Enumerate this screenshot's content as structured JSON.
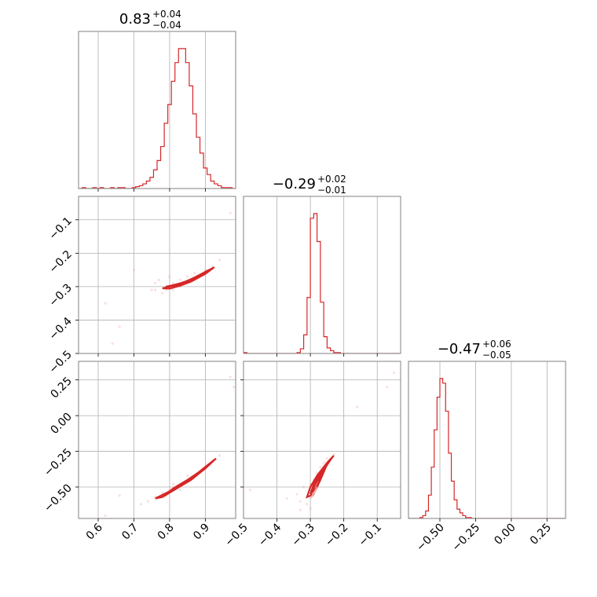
{
  "chart_data": {
    "type": "corner",
    "color": "#d62728",
    "panels": [
      {
        "id": "p00",
        "kind": "hist",
        "row": 0,
        "col": 0,
        "title": {
          "main": "0.83",
          "plus": "+0.04",
          "minus": "−0.04"
        },
        "xlim": [
          0.545,
          0.985
        ],
        "bin_edges": [
          0.545,
          0.555,
          0.565,
          0.575,
          0.585,
          0.595,
          0.605,
          0.615,
          0.625,
          0.635,
          0.645,
          0.655,
          0.665,
          0.675,
          0.685,
          0.695,
          0.705,
          0.715,
          0.725,
          0.735,
          0.745,
          0.755,
          0.765,
          0.775,
          0.785,
          0.795,
          0.805,
          0.815,
          0.825,
          0.835,
          0.845,
          0.855,
          0.865,
          0.875,
          0.885,
          0.895,
          0.905,
          0.915,
          0.925,
          0.935,
          0.945,
          0.955,
          0.965,
          0.975,
          0.985
        ],
        "counts": [
          0,
          1,
          0,
          0,
          1,
          0,
          1,
          0,
          0,
          1,
          0,
          1,
          1,
          0,
          0,
          1,
          2,
          3,
          5,
          8,
          12,
          20,
          30,
          45,
          70,
          90,
          115,
          135,
          150,
          150,
          135,
          110,
          80,
          55,
          38,
          22,
          15,
          8,
          5,
          3,
          1,
          1,
          1,
          0
        ],
        "ylim": [
          0,
          160
        ],
        "xgrid": [
          0.6,
          0.7,
          0.8,
          0.9
        ]
      },
      {
        "id": "p10",
        "kind": "scatter",
        "row": 1,
        "col": 0,
        "xlim": [
          0.545,
          0.985
        ],
        "ylim": [
          -0.5,
          -0.03
        ],
        "xgrid": [
          0.6,
          0.7,
          0.8,
          0.9
        ],
        "ygrid": [
          -0.1,
          -0.2,
          -0.3,
          -0.4
        ],
        "yticklabels": [
          "−0.1",
          "−0.2",
          "−0.3",
          "−0.4",
          "−0.5"
        ],
        "ytickvals": [
          -0.1,
          -0.2,
          -0.3,
          -0.4,
          -0.5
        ],
        "contours": [
          [
            [
              0.78,
              -0.305
            ],
            [
              0.8,
              -0.3
            ],
            [
              0.83,
              -0.292
            ],
            [
              0.86,
              -0.278
            ],
            [
              0.89,
              -0.262
            ],
            [
              0.925,
              -0.242
            ],
            [
              0.9,
              -0.262
            ],
            [
              0.86,
              -0.285
            ],
            [
              0.83,
              -0.297
            ],
            [
              0.8,
              -0.306
            ],
            [
              0.78,
              -0.305
            ]
          ],
          [
            [
              0.79,
              -0.3
            ],
            [
              0.81,
              -0.296
            ],
            [
              0.84,
              -0.287
            ],
            [
              0.87,
              -0.273
            ],
            [
              0.91,
              -0.25
            ],
            [
              0.88,
              -0.268
            ],
            [
              0.85,
              -0.284
            ],
            [
              0.82,
              -0.296
            ],
            [
              0.79,
              -0.3
            ]
          ],
          [
            [
              0.8,
              -0.298
            ],
            [
              0.83,
              -0.291
            ],
            [
              0.86,
              -0.28
            ],
            [
              0.89,
              -0.264
            ],
            [
              0.86,
              -0.279
            ],
            [
              0.83,
              -0.29
            ],
            [
              0.8,
              -0.298
            ]
          ]
        ],
        "samples": [
          [
            0.62,
            -0.35
          ],
          [
            0.66,
            -0.42
          ],
          [
            0.7,
            -0.25
          ],
          [
            0.75,
            -0.31
          ],
          [
            0.76,
            -0.29
          ],
          [
            0.77,
            -0.28
          ],
          [
            0.78,
            -0.32
          ],
          [
            0.79,
            -0.3
          ],
          [
            0.8,
            -0.27
          ],
          [
            0.81,
            -0.31
          ],
          [
            0.82,
            -0.3
          ],
          [
            0.83,
            -0.28
          ],
          [
            0.84,
            -0.29
          ],
          [
            0.85,
            -0.27
          ],
          [
            0.86,
            -0.28
          ],
          [
            0.87,
            -0.26
          ],
          [
            0.88,
            -0.27
          ],
          [
            0.9,
            -0.25
          ],
          [
            0.92,
            -0.24
          ],
          [
            0.94,
            -0.22
          ],
          [
            0.97,
            -0.08
          ],
          [
            0.79,
            -0.31
          ],
          [
            0.81,
            -0.29
          ],
          [
            0.83,
            -0.3
          ],
          [
            0.76,
            -0.31
          ],
          [
            0.64,
            -0.47
          ]
        ]
      },
      {
        "id": "p11",
        "kind": "hist",
        "row": 1,
        "col": 1,
        "title": {
          "main": "−0.29",
          "plus": "+0.02",
          "minus": "−0.01"
        },
        "xlim": [
          -0.5,
          -0.03
        ],
        "bin_edges": [
          -0.5,
          -0.49,
          -0.48,
          -0.47,
          -0.46,
          -0.45,
          -0.44,
          -0.43,
          -0.42,
          -0.41,
          -0.4,
          -0.39,
          -0.38,
          -0.37,
          -0.36,
          -0.35,
          -0.34,
          -0.33,
          -0.32,
          -0.31,
          -0.3,
          -0.29,
          -0.28,
          -0.27,
          -0.26,
          -0.25,
          -0.24,
          -0.23,
          -0.22,
          -0.21,
          -0.2,
          -0.19,
          -0.18,
          -0.17,
          -0.16,
          -0.15,
          -0.14,
          -0.13,
          -0.12,
          -0.11,
          -0.1,
          -0.09,
          -0.08,
          -0.07,
          -0.06,
          -0.05,
          -0.04,
          -0.03
        ],
        "counts": [
          1,
          0,
          0,
          0,
          0,
          0,
          0,
          0,
          0,
          0,
          0,
          0,
          0,
          0,
          0,
          0,
          1,
          5,
          20,
          60,
          145,
          150,
          120,
          55,
          18,
          6,
          3,
          1,
          1,
          0,
          0,
          0,
          0,
          0,
          0,
          0,
          0,
          0,
          0,
          0,
          0,
          0,
          0,
          0,
          0,
          0,
          0
        ],
        "ylim": [
          0,
          160
        ],
        "xgrid": [
          -0.4,
          -0.3,
          -0.2,
          -0.1
        ]
      },
      {
        "id": "p20",
        "kind": "scatter",
        "row": 2,
        "col": 0,
        "xlim": [
          0.545,
          0.985
        ],
        "ylim": [
          -0.72,
          0.38
        ],
        "xgrid": [
          0.6,
          0.7,
          0.8,
          0.9
        ],
        "ygrid": [
          0.25,
          0.0,
          -0.25,
          -0.5
        ],
        "yticklabels": [
          "0.25",
          "0.00",
          "−0.25",
          "−0.50"
        ],
        "ytickvals": [
          0.25,
          0.0,
          -0.25,
          -0.5
        ],
        "xticklabels": [
          "0.6",
          "0.7",
          "0.8",
          "0.9"
        ],
        "xtickvals": [
          0.6,
          0.7,
          0.8,
          0.9
        ],
        "contours": [
          [
            [
              0.76,
              -0.58
            ],
            [
              0.8,
              -0.53
            ],
            [
              0.84,
              -0.47
            ],
            [
              0.88,
              -0.4
            ],
            [
              0.93,
              -0.3
            ],
            [
              0.9,
              -0.37
            ],
            [
              0.86,
              -0.45
            ],
            [
              0.82,
              -0.51
            ],
            [
              0.78,
              -0.57
            ],
            [
              0.76,
              -0.58
            ]
          ],
          [
            [
              0.78,
              -0.56
            ],
            [
              0.82,
              -0.5
            ],
            [
              0.86,
              -0.44
            ],
            [
              0.91,
              -0.34
            ],
            [
              0.87,
              -0.42
            ],
            [
              0.83,
              -0.49
            ],
            [
              0.79,
              -0.55
            ],
            [
              0.78,
              -0.56
            ]
          ],
          [
            [
              0.8,
              -0.53
            ],
            [
              0.84,
              -0.47
            ],
            [
              0.88,
              -0.4
            ],
            [
              0.85,
              -0.45
            ],
            [
              0.81,
              -0.51
            ],
            [
              0.8,
              -0.53
            ]
          ]
        ],
        "samples": [
          [
            0.72,
            -0.62
          ],
          [
            0.74,
            -0.6
          ],
          [
            0.76,
            -0.57
          ],
          [
            0.78,
            -0.54
          ],
          [
            0.8,
            -0.52
          ],
          [
            0.82,
            -0.5
          ],
          [
            0.84,
            -0.47
          ],
          [
            0.86,
            -0.44
          ],
          [
            0.88,
            -0.4
          ],
          [
            0.9,
            -0.36
          ],
          [
            0.92,
            -0.32
          ],
          [
            0.94,
            -0.28
          ],
          [
            0.97,
            0.27
          ],
          [
            0.98,
            0.2
          ],
          [
            0.62,
            -0.7
          ],
          [
            0.66,
            -0.56
          ],
          [
            0.81,
            -0.48
          ],
          [
            0.83,
            -0.52
          ],
          [
            0.79,
            -0.56
          ],
          [
            0.85,
            -0.42
          ]
        ]
      },
      {
        "id": "p21",
        "kind": "scatter",
        "row": 2,
        "col": 1,
        "xlim": [
          -0.5,
          -0.03
        ],
        "ylim": [
          -0.72,
          0.38
        ],
        "xgrid": [
          -0.4,
          -0.3,
          -0.2,
          -0.1
        ],
        "ygrid": [
          0.25,
          0.0,
          -0.25,
          -0.5
        ],
        "xticklabels": [
          "−0.5",
          "−0.4",
          "−0.3",
          "−0.2",
          "−0.1"
        ],
        "xtickvals": [
          -0.5,
          -0.4,
          -0.3,
          -0.2,
          -0.1
        ],
        "contours": [
          [
            [
              -0.31,
              -0.57
            ],
            [
              -0.3,
              -0.5
            ],
            [
              -0.28,
              -0.42
            ],
            [
              -0.25,
              -0.33
            ],
            [
              -0.23,
              -0.28
            ],
            [
              -0.25,
              -0.34
            ],
            [
              -0.27,
              -0.45
            ],
            [
              -0.29,
              -0.55
            ],
            [
              -0.31,
              -0.57
            ]
          ],
          [
            [
              -0.3,
              -0.55
            ],
            [
              -0.29,
              -0.48
            ],
            [
              -0.27,
              -0.4
            ],
            [
              -0.24,
              -0.31
            ],
            [
              -0.26,
              -0.38
            ],
            [
              -0.28,
              -0.5
            ],
            [
              -0.3,
              -0.55
            ]
          ],
          [
            [
              -0.295,
              -0.53
            ],
            [
              -0.28,
              -0.46
            ],
            [
              -0.26,
              -0.38
            ],
            [
              -0.27,
              -0.44
            ],
            [
              -0.285,
              -0.52
            ],
            [
              -0.295,
              -0.53
            ]
          ]
        ],
        "inner": [
          [
            -0.3,
            -0.58
          ],
          [
            -0.29,
            -0.54
          ],
          [
            -0.28,
            -0.5
          ],
          [
            -0.29,
            -0.56
          ],
          [
            -0.3,
            -0.58
          ]
        ],
        "samples": [
          [
            -0.34,
            -0.55
          ],
          [
            -0.33,
            -0.6
          ],
          [
            -0.32,
            -0.5
          ],
          [
            -0.31,
            -0.62
          ],
          [
            -0.3,
            -0.48
          ],
          [
            -0.29,
            -0.45
          ],
          [
            -0.28,
            -0.4
          ],
          [
            -0.27,
            -0.36
          ],
          [
            -0.26,
            -0.33
          ],
          [
            -0.25,
            -0.3
          ],
          [
            -0.23,
            -0.27
          ],
          [
            -0.16,
            0.06
          ],
          [
            -0.05,
            0.3
          ],
          [
            -0.07,
            0.2
          ],
          [
            -0.37,
            -0.58
          ],
          [
            -0.48,
            -0.52
          ],
          [
            -0.33,
            -0.66
          ],
          [
            -0.3,
            -0.65
          ]
        ]
      },
      {
        "id": "p22",
        "kind": "hist",
        "row": 2,
        "col": 2,
        "title": {
          "main": "−0.47",
          "plus": "+0.06",
          "minus": "−0.05"
        },
        "xlim": [
          -0.72,
          0.38
        ],
        "bin_edges": [
          -0.72,
          -0.7,
          -0.68,
          -0.66,
          -0.64,
          -0.62,
          -0.6,
          -0.58,
          -0.56,
          -0.54,
          -0.52,
          -0.5,
          -0.48,
          -0.46,
          -0.44,
          -0.42,
          -0.4,
          -0.38,
          -0.36,
          -0.34,
          -0.32,
          -0.3,
          -0.28,
          -0.26,
          -0.24,
          -0.22,
          -0.2,
          -0.18,
          -0.16,
          -0.14,
          -0.12,
          -0.1,
          -0.08,
          -0.06,
          -0.04,
          -0.02,
          0.0,
          0.02,
          0.04,
          0.06,
          0.08,
          0.1,
          0.12,
          0.14,
          0.16,
          0.18,
          0.2,
          0.22,
          0.24,
          0.26,
          0.28,
          0.3,
          0.32,
          0.34,
          0.36,
          0.38
        ],
        "counts": [
          0,
          0,
          0,
          0,
          1,
          3,
          8,
          25,
          55,
          95,
          130,
          150,
          145,
          115,
          70,
          40,
          20,
          10,
          6,
          3,
          1,
          1,
          0,
          0,
          0,
          0,
          0,
          0,
          0,
          0,
          0,
          0,
          0,
          0,
          0,
          0,
          0,
          0,
          0,
          0,
          0,
          0,
          0,
          0,
          0,
          0,
          0,
          0,
          0,
          0,
          0,
          0,
          0,
          0,
          0
        ],
        "ylim": [
          0,
          160
        ],
        "xgrid": [
          -0.5,
          -0.25,
          0.0,
          0.25
        ],
        "xticklabels": [
          "−0.50",
          "−0.25",
          "0.00",
          "0.25"
        ],
        "xtickvals": [
          -0.5,
          -0.25,
          0.0,
          0.25
        ]
      }
    ]
  }
}
